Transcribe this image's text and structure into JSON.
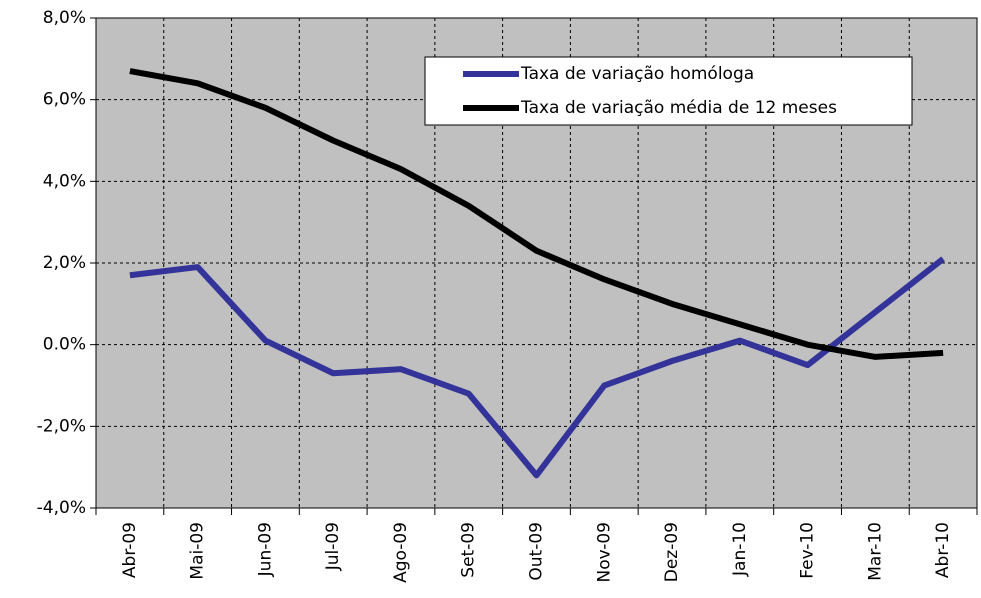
{
  "chart_data": {
    "type": "line",
    "categories": [
      "Abr-09",
      "Mai-09",
      "Jun-09",
      "Jul-09",
      "Ago-09",
      "Set-09",
      "Out-09",
      "Nov-09",
      "Dez-09",
      "Jan-10",
      "Fev-10",
      "Mar-10",
      "Abr-10"
    ],
    "series": [
      {
        "name": "Taxa de variação homóloga",
        "color": "#333399",
        "values": [
          1.7,
          1.9,
          0.1,
          -0.7,
          -0.6,
          -1.2,
          -3.2,
          -1.0,
          -0.4,
          0.1,
          -0.5,
          0.8,
          2.1
        ]
      },
      {
        "name": "Taxa de variação média de 12 meses",
        "color": "#000000",
        "values": [
          6.7,
          6.4,
          5.8,
          5.0,
          4.3,
          3.4,
          2.3,
          1.6,
          1.0,
          0.5,
          0.0,
          -0.3,
          -0.2
        ]
      }
    ],
    "ylim": [
      -4,
      8
    ],
    "yticks": [
      {
        "value": -4,
        "label": "-4,0%"
      },
      {
        "value": -2,
        "label": "-2,0%"
      },
      {
        "value": 0,
        "label": "0.0%"
      },
      {
        "value": 2,
        "label": "2,0%"
      },
      {
        "value": 4,
        "label": "4,0%"
      },
      {
        "value": 6,
        "label": "6,0%"
      },
      {
        "value": 8,
        "label": "8,0%"
      }
    ],
    "grid": true,
    "legend": "top-right",
    "background": "#c0c0c0"
  }
}
